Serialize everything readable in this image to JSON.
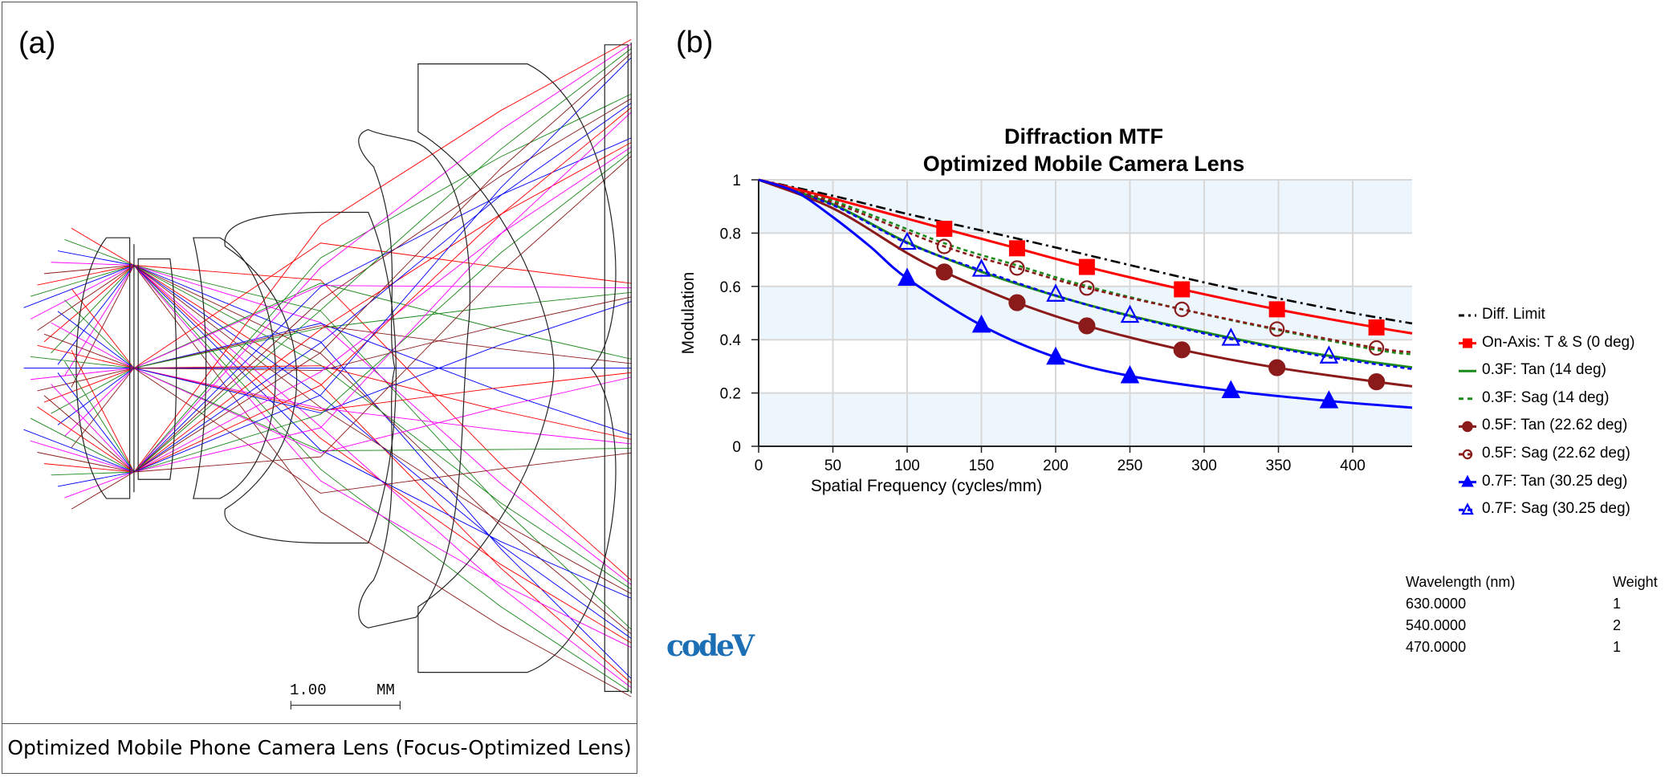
{
  "panel_a": {
    "label": "(a)",
    "caption": "Optimized Mobile Phone Camera Lens (Focus-Optimized Lens)",
    "scale_bar": {
      "value": "1.00",
      "unit": "MM"
    },
    "ray_colors": [
      "#ff0000",
      "#1a8a1a",
      "#0000ff",
      "#ff00ff",
      "#8b1a1a"
    ],
    "outline_color": "#222222"
  },
  "panel_b": {
    "label": "(b)",
    "logo": "codeV"
  },
  "chart_data": {
    "type": "line",
    "title": "Diffraction MTF",
    "subtitle": "Optimized Mobile Camera Lens",
    "xlabel": "Spatial Frequency (cycles/mm)",
    "ylabel": "Modulation",
    "xlim": [
      0,
      440
    ],
    "ylim": [
      0,
      1
    ],
    "xticks": [
      "0",
      "50",
      "100",
      "150",
      "200",
      "250",
      "300",
      "350",
      "400"
    ],
    "xtick_values": [
      0,
      50,
      100,
      150,
      200,
      250,
      300,
      350,
      400
    ],
    "yticks": [
      "0",
      "0.2",
      "0.4",
      "0.6",
      "0.8",
      "1"
    ],
    "ytick_values": [
      0,
      0.2,
      0.4,
      0.6,
      0.8,
      1
    ],
    "grid": true,
    "band_color": "#eef6fd",
    "legend_placement": "right",
    "series": [
      {
        "name": "Diff. Limit",
        "color": "#000000",
        "dash": "dashdot",
        "marker": "none",
        "x": [
          0,
          50,
          100,
          150,
          200,
          250,
          300,
          350,
          400,
          440
        ],
        "y": [
          1,
          0.94,
          0.872,
          0.81,
          0.746,
          0.68,
          0.615,
          0.555,
          0.5,
          0.461
        ],
        "markers": []
      },
      {
        "name": "On-Axis: T & S (0 deg)",
        "color": "#ff0000",
        "dash": "solid",
        "marker": "square-filled",
        "x": [
          0,
          50,
          125,
          174,
          221,
          285,
          349,
          416,
          440
        ],
        "y": [
          1,
          0.93,
          0.816,
          0.743,
          0.673,
          0.589,
          0.514,
          0.446,
          0.424
        ],
        "markers": [
          [
            125,
            0.816
          ],
          [
            174,
            0.743
          ],
          [
            221,
            0.673
          ],
          [
            285,
            0.589
          ],
          [
            349,
            0.514
          ],
          [
            416,
            0.446
          ]
        ]
      },
      {
        "name": "0.3F: Tan (14 deg)",
        "color": "#1a8a1a",
        "dash": "solid",
        "marker": "none",
        "x": [
          0,
          50,
          100,
          150,
          200,
          250,
          300,
          350,
          400,
          440
        ],
        "y": [
          1,
          0.908,
          0.765,
          0.655,
          0.565,
          0.49,
          0.428,
          0.371,
          0.326,
          0.296
        ],
        "markers": []
      },
      {
        "name": "0.3F: Sag (14 deg)",
        "color": "#1a8a1a",
        "dash": "dotted",
        "marker": "none",
        "x": [
          0,
          50,
          125,
          174,
          221,
          285,
          349,
          416,
          440
        ],
        "y": [
          1,
          0.922,
          0.762,
          0.679,
          0.601,
          0.514,
          0.437,
          0.362,
          0.345
        ],
        "markers": []
      },
      {
        "name": "0.5F: Tan (22.62 deg)",
        "color": "#8b1a1a",
        "dash": "solid",
        "marker": "circle-filled",
        "x": [
          0,
          50,
          100,
          125,
          174,
          221,
          285,
          349,
          416,
          440
        ],
        "y": [
          1,
          0.893,
          0.725,
          0.654,
          0.539,
          0.452,
          0.362,
          0.295,
          0.242,
          0.225
        ],
        "markers": [
          [
            125,
            0.654
          ],
          [
            174,
            0.539
          ],
          [
            221,
            0.452
          ],
          [
            285,
            0.362
          ],
          [
            349,
            0.295
          ],
          [
            416,
            0.242
          ]
        ]
      },
      {
        "name": "0.5F: Sag (22.62 deg)",
        "color": "#8b1a1a",
        "dash": "dotted",
        "marker": "circle-open",
        "x": [
          0,
          50,
          125,
          174,
          221,
          285,
          349,
          416,
          440
        ],
        "y": [
          1,
          0.915,
          0.75,
          0.669,
          0.594,
          0.514,
          0.44,
          0.369,
          0.353
        ],
        "markers": [
          [
            125,
            0.75
          ],
          [
            174,
            0.669
          ],
          [
            221,
            0.594
          ],
          [
            285,
            0.514
          ],
          [
            349,
            0.44
          ],
          [
            416,
            0.369
          ]
        ]
      },
      {
        "name": "0.7F: Tan (30.25 deg)",
        "color": "#0000ff",
        "dash": "solid",
        "marker": "triangle-filled",
        "x": [
          0,
          25,
          50,
          75,
          100,
          150,
          200,
          250,
          318,
          384,
          440
        ],
        "y": [
          1,
          0.955,
          0.86,
          0.75,
          0.63,
          0.454,
          0.334,
          0.264,
          0.208,
          0.17,
          0.145
        ],
        "markers": [
          [
            100,
            0.63
          ],
          [
            150,
            0.454
          ],
          [
            200,
            0.334
          ],
          [
            250,
            0.264
          ],
          [
            318,
            0.208
          ],
          [
            384,
            0.17
          ]
        ]
      },
      {
        "name": "0.7F: Sag (30.25 deg)",
        "color": "#0000ff",
        "dash": "dotted",
        "marker": "triangle-open",
        "x": [
          0,
          50,
          100,
          150,
          200,
          250,
          318,
          384,
          440
        ],
        "y": [
          1,
          0.905,
          0.762,
          0.66,
          0.566,
          0.488,
          0.402,
          0.334,
          0.29
        ],
        "markers": [
          [
            100,
            0.765
          ],
          [
            150,
            0.664
          ],
          [
            200,
            0.57
          ],
          [
            250,
            0.491
          ],
          [
            318,
            0.405
          ],
          [
            384,
            0.338
          ]
        ]
      }
    ],
    "wavelength_table": {
      "headers": [
        "Wavelength (nm)",
        "Weight"
      ],
      "rows": [
        [
          "630.0000",
          "1"
        ],
        [
          "540.0000",
          "2"
        ],
        [
          "470.0000",
          "1"
        ]
      ]
    }
  }
}
